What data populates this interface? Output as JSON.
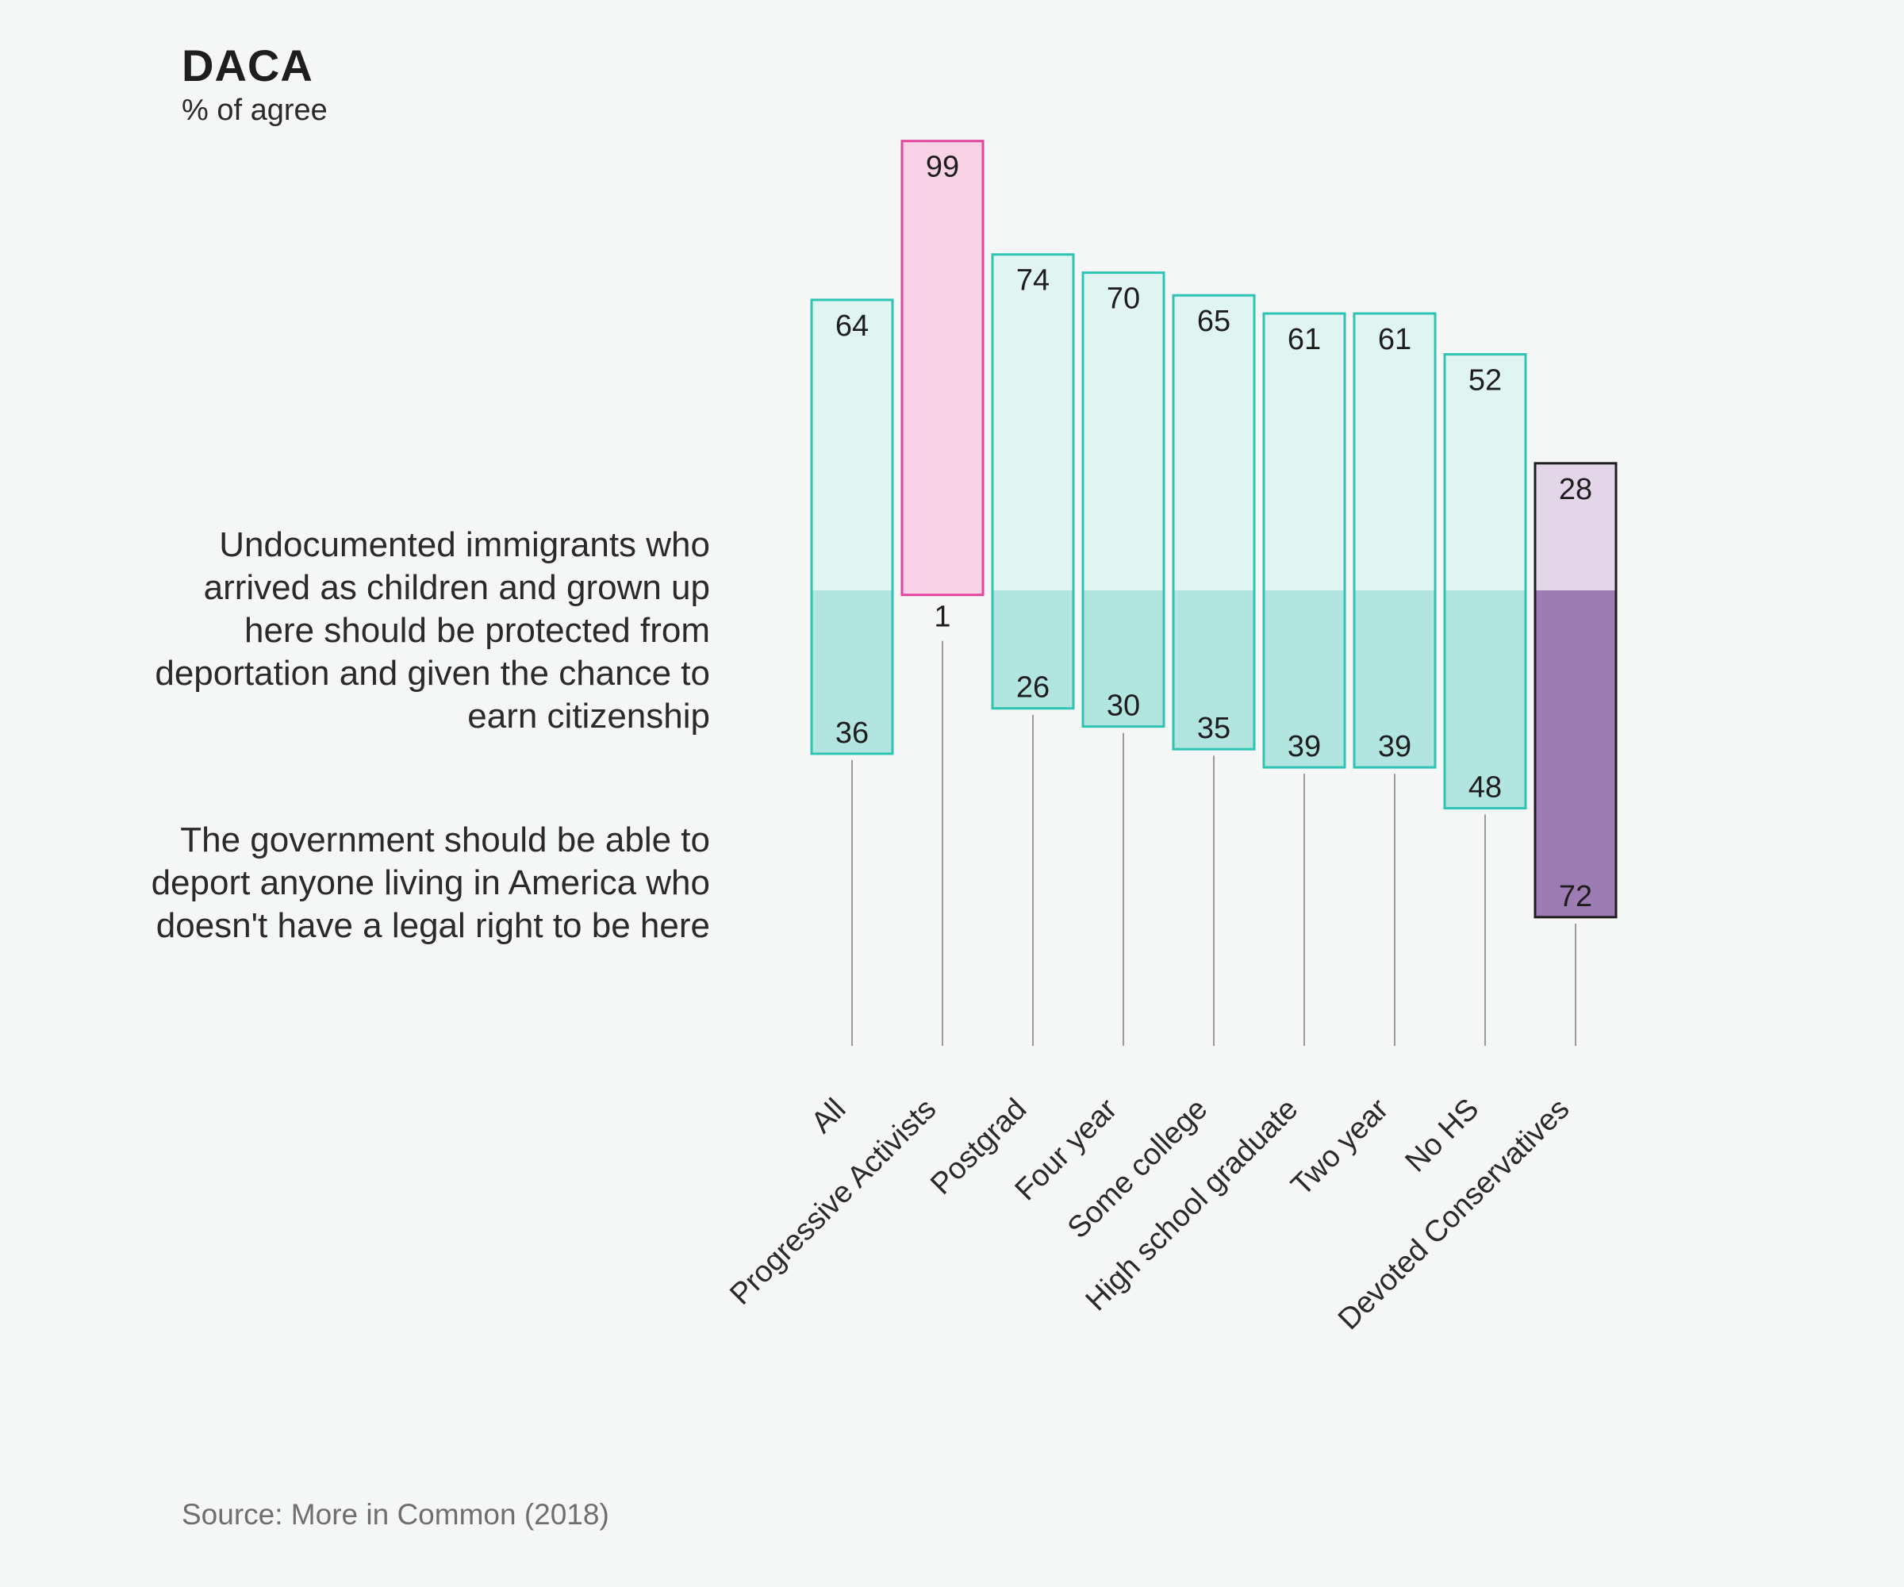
{
  "header": {
    "title": "DACA",
    "subtitle": "% of agree"
  },
  "legend": {
    "top_text": "Undocumented immigrants who arrived as children and grown up here should be protected from deportation and given the chance to earn citizenship",
    "bottom_text": "The government should be able to deport anyone living in America who doesn't have a legal right to be here"
  },
  "footer": {
    "source": "Source: More in Common (2018)"
  },
  "colors": {
    "default_top_fill": "#e0f4f2",
    "default_bottom_fill": "#b3e5e0",
    "default_border": "#2ec4b4",
    "progressive_fill": "#f8d3e6",
    "progressive_border": "#e0459c",
    "conservative_top_fill": "#e2d6e8",
    "conservative_bottom_fill": "#9d7cb3",
    "conservative_border": "#1e1e1e",
    "stem": "#9a9a9a"
  },
  "chart_data": {
    "type": "bar",
    "subtype": "diverging-stacked",
    "title": "DACA",
    "subtitle": "% of agree",
    "categories": [
      "All",
      "Progressive Activists",
      "Postgrad",
      "Four year",
      "Some college",
      "High school graduate",
      "Two year",
      "No HS",
      "Devoted Conservatives"
    ],
    "series": [
      {
        "name": "Undocumented immigrants who arrived as children and grown up here should be protected from deportation and given the chance to earn citizenship",
        "direction": "up",
        "values": [
          64,
          99,
          74,
          70,
          65,
          61,
          61,
          52,
          28
        ]
      },
      {
        "name": "The government should be able to deport anyone living in America who doesn't have a legal right to be here",
        "direction": "down",
        "values": [
          36,
          1,
          26,
          30,
          35,
          39,
          39,
          48,
          72
        ]
      }
    ],
    "highlight": {
      "Progressive Activists": "progressive",
      "Devoted Conservatives": "conservative"
    },
    "ylim": [
      -100,
      100
    ],
    "grid": false,
    "source": "Source: More in Common (2018)"
  }
}
